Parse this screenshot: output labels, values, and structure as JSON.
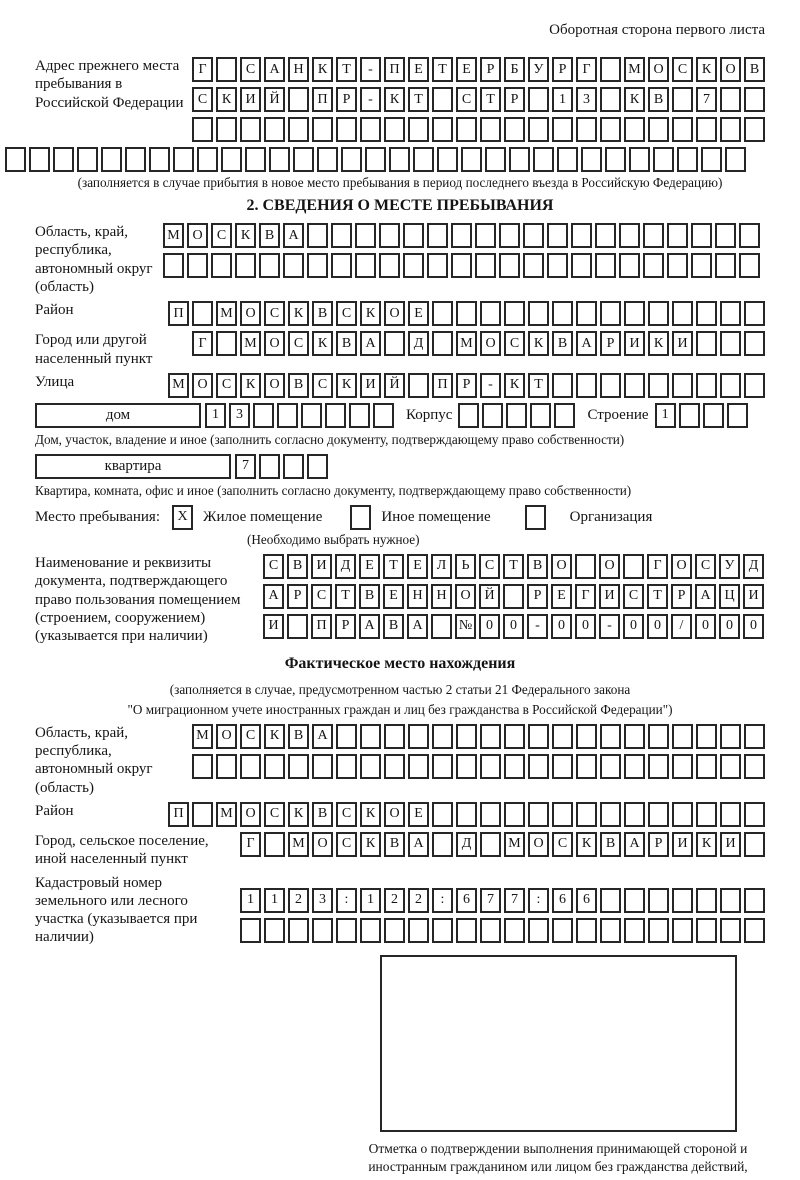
{
  "page": {
    "corner_note": "Оборотная сторона первого листа"
  },
  "prev_address": {
    "label": "Адрес прежнего места пребывания в Российской Федерации",
    "rows": [
      "Г САНКТ-ПЕТЕРБУРГ МОСКОВ",
      "СКИЙ ПР-КТ СТР 13 КВ 7  ",
      "                        ",
      "                               "
    ],
    "note": "(заполняется в случае прибытия в новое место пребывания в период последнего въезда в Российскую Федерацию)"
  },
  "section2": {
    "title": "2. СВЕДЕНИЯ О МЕСТЕ ПРЕБЫВАНИЯ",
    "region": {
      "label": "Область, край, республика, автономный округ (область)",
      "rows": [
        "МОСКВА                   ",
        "                         "
      ]
    },
    "district": {
      "label": "Район",
      "cells": "П МОСКВСКОЕ              "
    },
    "city": {
      "label": "Город или другой населенный пункт",
      "cells": "Г МОСКВА Д МОСКВАРИКИ   "
    },
    "street": {
      "label": "Улица",
      "cells": "МОСКОВСКИЙ ПР-КТ         "
    },
    "house": {
      "box_label": "дом",
      "cells": "13      ",
      "korpus_label": "Корпус",
      "korpus_cells": "     ",
      "stroenie_label": "Строение",
      "stroenie_cells": "1   "
    },
    "house_note": "Дом, участок, владение и иное (заполнить согласно документу, подтверждающему право собственности)",
    "apartment": {
      "box_label": "квартира",
      "cells": "7   "
    },
    "apartment_note": "Квартира, комната, офис и иное (заполнить согласно документу, подтверждающему право собственности)",
    "stay_type": {
      "label": "Место пребывания:",
      "options": [
        {
          "mark": "X",
          "label": "Жилое помещение"
        },
        {
          "mark": "",
          "label": "Иное помещение"
        },
        {
          "mark": "",
          "label": "Организация"
        }
      ],
      "note": "(Необходимо выбрать нужное)"
    },
    "document": {
      "label": "Наименование и реквизиты документа, подтверждающего право пользования помещением (строением, сооружением) (указывается при наличии)",
      "rows": [
        "СВИДЕТЕЛЬСТВО О ГОСУД",
        "АРСТВЕННОЙ РЕГИСТРАЦИ",
        "И ПРАВА №00-00-00/000"
      ]
    }
  },
  "actual_location": {
    "title": "Фактическое место нахождения",
    "note1": "(заполняется в случае, предусмотренном частью 2 статьи 21 Федерального закона",
    "note2": "\"О миграционном учете иностранных граждан и лиц без гражданства в Российской Федерации\")",
    "region": {
      "label": "Область, край, республика, автономный округ (область)",
      "rows": [
        "МОСКВА                  ",
        "                        "
      ]
    },
    "district": {
      "label": "Район",
      "cells": "П МОСКВСКОЕ              "
    },
    "city": {
      "label": "Город, сельское поселение, иной населенный пункт",
      "cells": "Г МОСКВА Д МОСКВАРИКИ "
    },
    "cadastre": {
      "label": "Кадастровый номер земельного или лесного участка (указывается при наличии)",
      "rows": [
        "1123:122:677:66       ",
        "                      "
      ]
    },
    "stamp_caption": "Отметка о подтверждении выполнения принимающей стороной и иностранным гражданином или лицом без гражданства действий, необходимых для его постановки на учет по месту пребывания"
  }
}
